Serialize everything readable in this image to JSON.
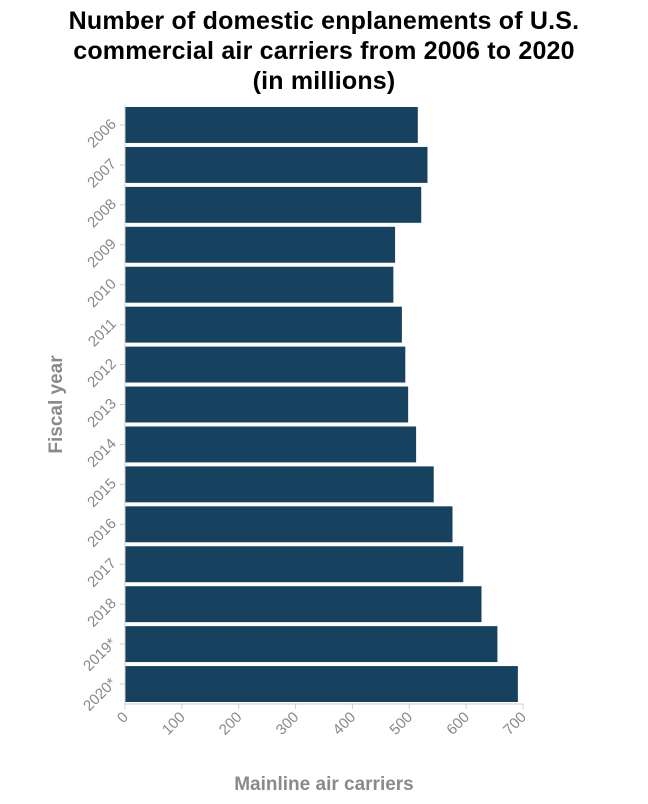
{
  "chart_data": {
    "type": "bar",
    "orientation": "horizontal",
    "title_lines": [
      "Number of domestic enplanements of U.S.",
      "commercial air carriers from 2006 to 2020",
      "(in millions)"
    ],
    "xlabel": "Mainline air carriers",
    "ylabel": "Fiscal year",
    "categories": [
      "2006",
      "2007",
      "2008",
      "2009",
      "2010",
      "2011",
      "2012",
      "2013",
      "2014",
      "2015",
      "2016",
      "2017",
      "2018",
      "2019*",
      "2020*"
    ],
    "series": [
      {
        "values": [
          515,
          532,
          521,
          475,
          472,
          487,
          493,
          498,
          512,
          543,
          576,
          595,
          627,
          655,
          691
        ]
      }
    ],
    "xlim": [
      0,
      700
    ],
    "xticks": [
      0,
      100,
      200,
      300,
      400,
      500,
      600,
      700
    ],
    "bar_color": "#17425f",
    "grid": false,
    "legend": "none"
  }
}
